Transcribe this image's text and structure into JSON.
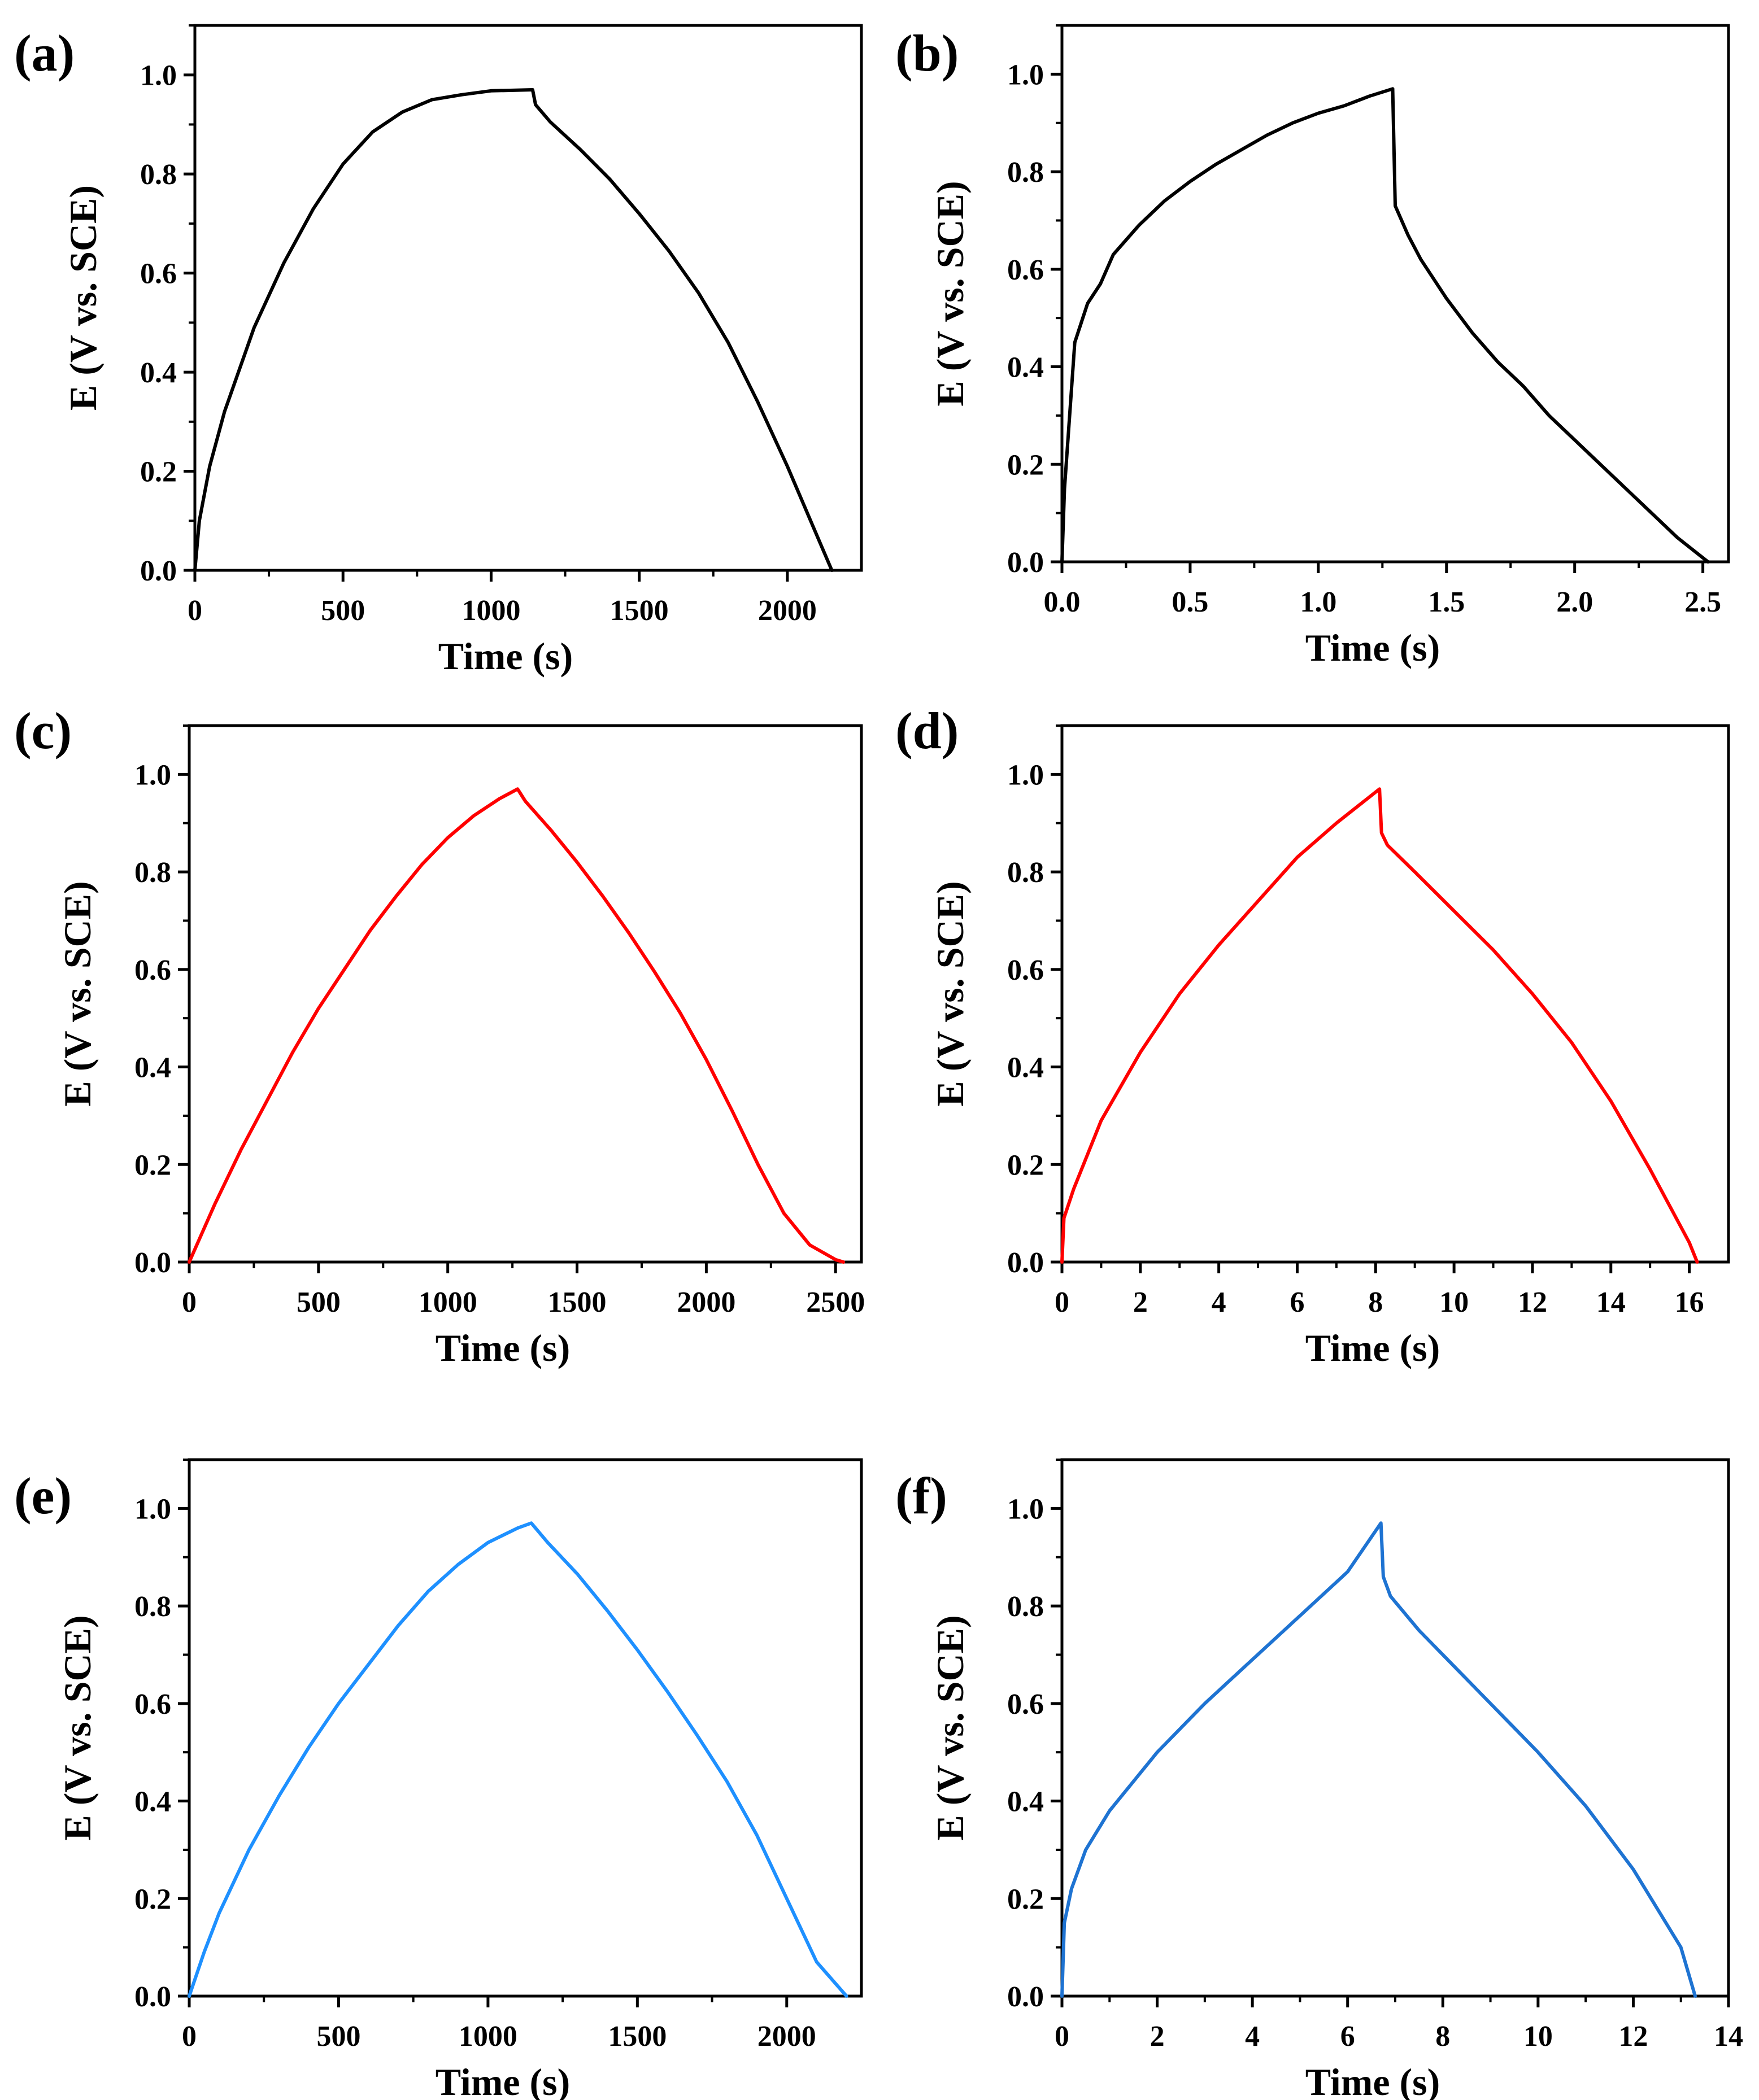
{
  "chart_data": [
    {
      "panel_label": "(a)",
      "type": "line",
      "xlabel": "Time (s)",
      "ylabel": "E (V vs. SCE)",
      "xlim": [
        0,
        2250
      ],
      "ylim": [
        0,
        1.1
      ],
      "xticks": [
        0,
        500,
        1000,
        1500,
        2000
      ],
      "xtick_labels": [
        "0",
        "500",
        "1000",
        "1500",
        "2000"
      ],
      "yticks": [
        0,
        0.2,
        0.4,
        0.6,
        0.8,
        1.0
      ],
      "ytick_labels": [
        "0.0",
        "0.2",
        "0.4",
        "0.6",
        "0.8",
        "1.0"
      ],
      "color": "#000000",
      "series": [
        {
          "x": [
            0,
            15,
            50,
            100,
            200,
            300,
            400,
            500,
            600,
            700,
            800,
            900,
            1000,
            1140,
            1150,
            1200,
            1300,
            1400,
            1500,
            1600,
            1700,
            1800,
            1900,
            2000,
            2100,
            2150
          ],
          "y": [
            0,
            0.1,
            0.21,
            0.32,
            0.49,
            0.62,
            0.73,
            0.82,
            0.885,
            0.925,
            0.95,
            0.96,
            0.968,
            0.97,
            0.94,
            0.905,
            0.85,
            0.79,
            0.72,
            0.645,
            0.56,
            0.46,
            0.34,
            0.21,
            0.07,
            0.0
          ]
        }
      ]
    },
    {
      "panel_label": "(b)",
      "type": "line",
      "xlabel": "Time (s)",
      "ylabel": "E (V vs. SCE)",
      "xlim": [
        0,
        2.6
      ],
      "ylim": [
        0,
        1.1
      ],
      "xticks": [
        0,
        0.5,
        1.0,
        1.5,
        2.0,
        2.5
      ],
      "xtick_labels": [
        "0.0",
        "0.5",
        "1.0",
        "1.5",
        "2.0",
        "2.5"
      ],
      "yticks": [
        0,
        0.2,
        0.4,
        0.6,
        0.8,
        1.0
      ],
      "ytick_labels": [
        "0.0",
        "0.2",
        "0.4",
        "0.6",
        "0.8",
        "1.0"
      ],
      "color": "#000000",
      "series": [
        {
          "x": [
            0,
            0.01,
            0.05,
            0.1,
            0.15,
            0.2,
            0.3,
            0.4,
            0.5,
            0.6,
            0.7,
            0.8,
            0.9,
            1.0,
            1.1,
            1.2,
            1.29,
            1.3,
            1.35,
            1.4,
            1.5,
            1.6,
            1.7,
            1.8,
            1.9,
            2.0,
            2.1,
            2.2,
            2.3,
            2.4,
            2.52
          ],
          "y": [
            0,
            0.15,
            0.45,
            0.53,
            0.57,
            0.63,
            0.69,
            0.74,
            0.78,
            0.815,
            0.845,
            0.875,
            0.9,
            0.92,
            0.935,
            0.955,
            0.97,
            0.73,
            0.67,
            0.62,
            0.54,
            0.47,
            0.41,
            0.36,
            0.3,
            0.25,
            0.2,
            0.15,
            0.1,
            0.05,
            0.0
          ]
        }
      ]
    },
    {
      "panel_label": "(c)",
      "type": "line",
      "xlabel": "Time (s)",
      "ylabel": "E (V vs. SCE)",
      "xlim": [
        0,
        2600
      ],
      "ylim": [
        0,
        1.1
      ],
      "xticks": [
        0,
        500,
        1000,
        1500,
        2000,
        2500
      ],
      "xtick_labels": [
        "0",
        "500",
        "1000",
        "1500",
        "2000",
        "2500"
      ],
      "yticks": [
        0,
        0.2,
        0.4,
        0.6,
        0.8,
        1.0
      ],
      "ytick_labels": [
        "0.0",
        "0.2",
        "0.4",
        "0.6",
        "0.8",
        "1.0"
      ],
      "color": "#ff0000",
      "series": [
        {
          "x": [
            0,
            50,
            100,
            200,
            300,
            400,
            500,
            600,
            700,
            800,
            900,
            1000,
            1100,
            1200,
            1270,
            1300,
            1400,
            1500,
            1600,
            1700,
            1800,
            1900,
            2000,
            2100,
            2200,
            2300,
            2400,
            2500,
            2530
          ],
          "y": [
            0,
            0.06,
            0.12,
            0.23,
            0.33,
            0.43,
            0.52,
            0.6,
            0.68,
            0.75,
            0.815,
            0.87,
            0.915,
            0.95,
            0.97,
            0.945,
            0.885,
            0.82,
            0.75,
            0.675,
            0.595,
            0.51,
            0.415,
            0.31,
            0.2,
            0.1,
            0.035,
            0.005,
            0.0
          ]
        }
      ]
    },
    {
      "panel_label": "(d)",
      "type": "line",
      "xlabel": "Time (s)",
      "ylabel": "E (V vs. SCE)",
      "xlim": [
        0,
        17
      ],
      "ylim": [
        0,
        1.1
      ],
      "xticks": [
        0,
        2,
        4,
        6,
        8,
        10,
        12,
        14,
        16
      ],
      "xtick_labels": [
        "0",
        "2",
        "4",
        "6",
        "8",
        "10",
        "12",
        "14",
        "16"
      ],
      "yticks": [
        0,
        0.2,
        0.4,
        0.6,
        0.8,
        1.0
      ],
      "ytick_labels": [
        "0.0",
        "0.2",
        "0.4",
        "0.6",
        "0.8",
        "1.0"
      ],
      "color": "#ff0000",
      "series": [
        {
          "x": [
            0,
            0.05,
            0.3,
            1,
            2,
            3,
            4,
            5,
            6,
            7,
            8.1,
            8.15,
            8.3,
            9,
            10,
            11,
            12,
            13,
            14,
            15,
            16,
            16.2
          ],
          "y": [
            0,
            0.09,
            0.15,
            0.29,
            0.43,
            0.55,
            0.65,
            0.74,
            0.83,
            0.9,
            0.97,
            0.88,
            0.855,
            0.8,
            0.72,
            0.64,
            0.55,
            0.45,
            0.33,
            0.19,
            0.04,
            0.0
          ]
        }
      ]
    },
    {
      "panel_label": "(e)",
      "type": "line",
      "xlabel": "Time (s)",
      "ylabel": "E (V vs. SCE)",
      "xlim": [
        0,
        2250
      ],
      "ylim": [
        0,
        1.1
      ],
      "xticks": [
        0,
        500,
        1000,
        1500,
        2000
      ],
      "xtick_labels": [
        "0",
        "500",
        "1000",
        "1500",
        "2000"
      ],
      "yticks": [
        0,
        0.2,
        0.4,
        0.6,
        0.8,
        1.0
      ],
      "ytick_labels": [
        "0.0",
        "0.2",
        "0.4",
        "0.6",
        "0.8",
        "1.0"
      ],
      "color": "#1e90ff",
      "series": [
        {
          "x": [
            0,
            50,
            100,
            200,
            300,
            400,
            500,
            600,
            700,
            800,
            900,
            1000,
            1100,
            1145,
            1200,
            1300,
            1400,
            1500,
            1600,
            1700,
            1800,
            1900,
            2000,
            2100,
            2200
          ],
          "y": [
            0,
            0.09,
            0.17,
            0.3,
            0.41,
            0.51,
            0.6,
            0.68,
            0.76,
            0.83,
            0.885,
            0.93,
            0.96,
            0.97,
            0.93,
            0.865,
            0.79,
            0.71,
            0.625,
            0.535,
            0.44,
            0.33,
            0.2,
            0.07,
            0.0
          ]
        }
      ]
    },
    {
      "panel_label": "(f)",
      "type": "line",
      "xlabel": "Time (s)",
      "ylabel": "E (V vs. SCE)",
      "xlim": [
        0,
        14
      ],
      "ylim": [
        0,
        1.1
      ],
      "xticks": [
        0,
        2,
        4,
        6,
        8,
        10,
        12,
        14
      ],
      "xtick_labels": [
        "0",
        "2",
        "4",
        "6",
        "8",
        "10",
        "12",
        "14"
      ],
      "yticks": [
        0,
        0.2,
        0.4,
        0.6,
        0.8,
        1.0
      ],
      "ytick_labels": [
        "0.0",
        "0.2",
        "0.4",
        "0.6",
        "0.8",
        "1.0"
      ],
      "color": "#1e73d2",
      "series": [
        {
          "x": [
            0,
            0.05,
            0.2,
            0.5,
            1,
            2,
            3,
            4,
            5,
            6,
            6.7,
            6.75,
            6.9,
            7.5,
            8,
            9,
            10,
            11,
            12,
            13,
            13.3
          ],
          "y": [
            0,
            0.15,
            0.22,
            0.3,
            0.38,
            0.5,
            0.6,
            0.69,
            0.78,
            0.87,
            0.97,
            0.86,
            0.82,
            0.75,
            0.7,
            0.6,
            0.5,
            0.39,
            0.26,
            0.1,
            0.0
          ]
        }
      ]
    }
  ]
}
